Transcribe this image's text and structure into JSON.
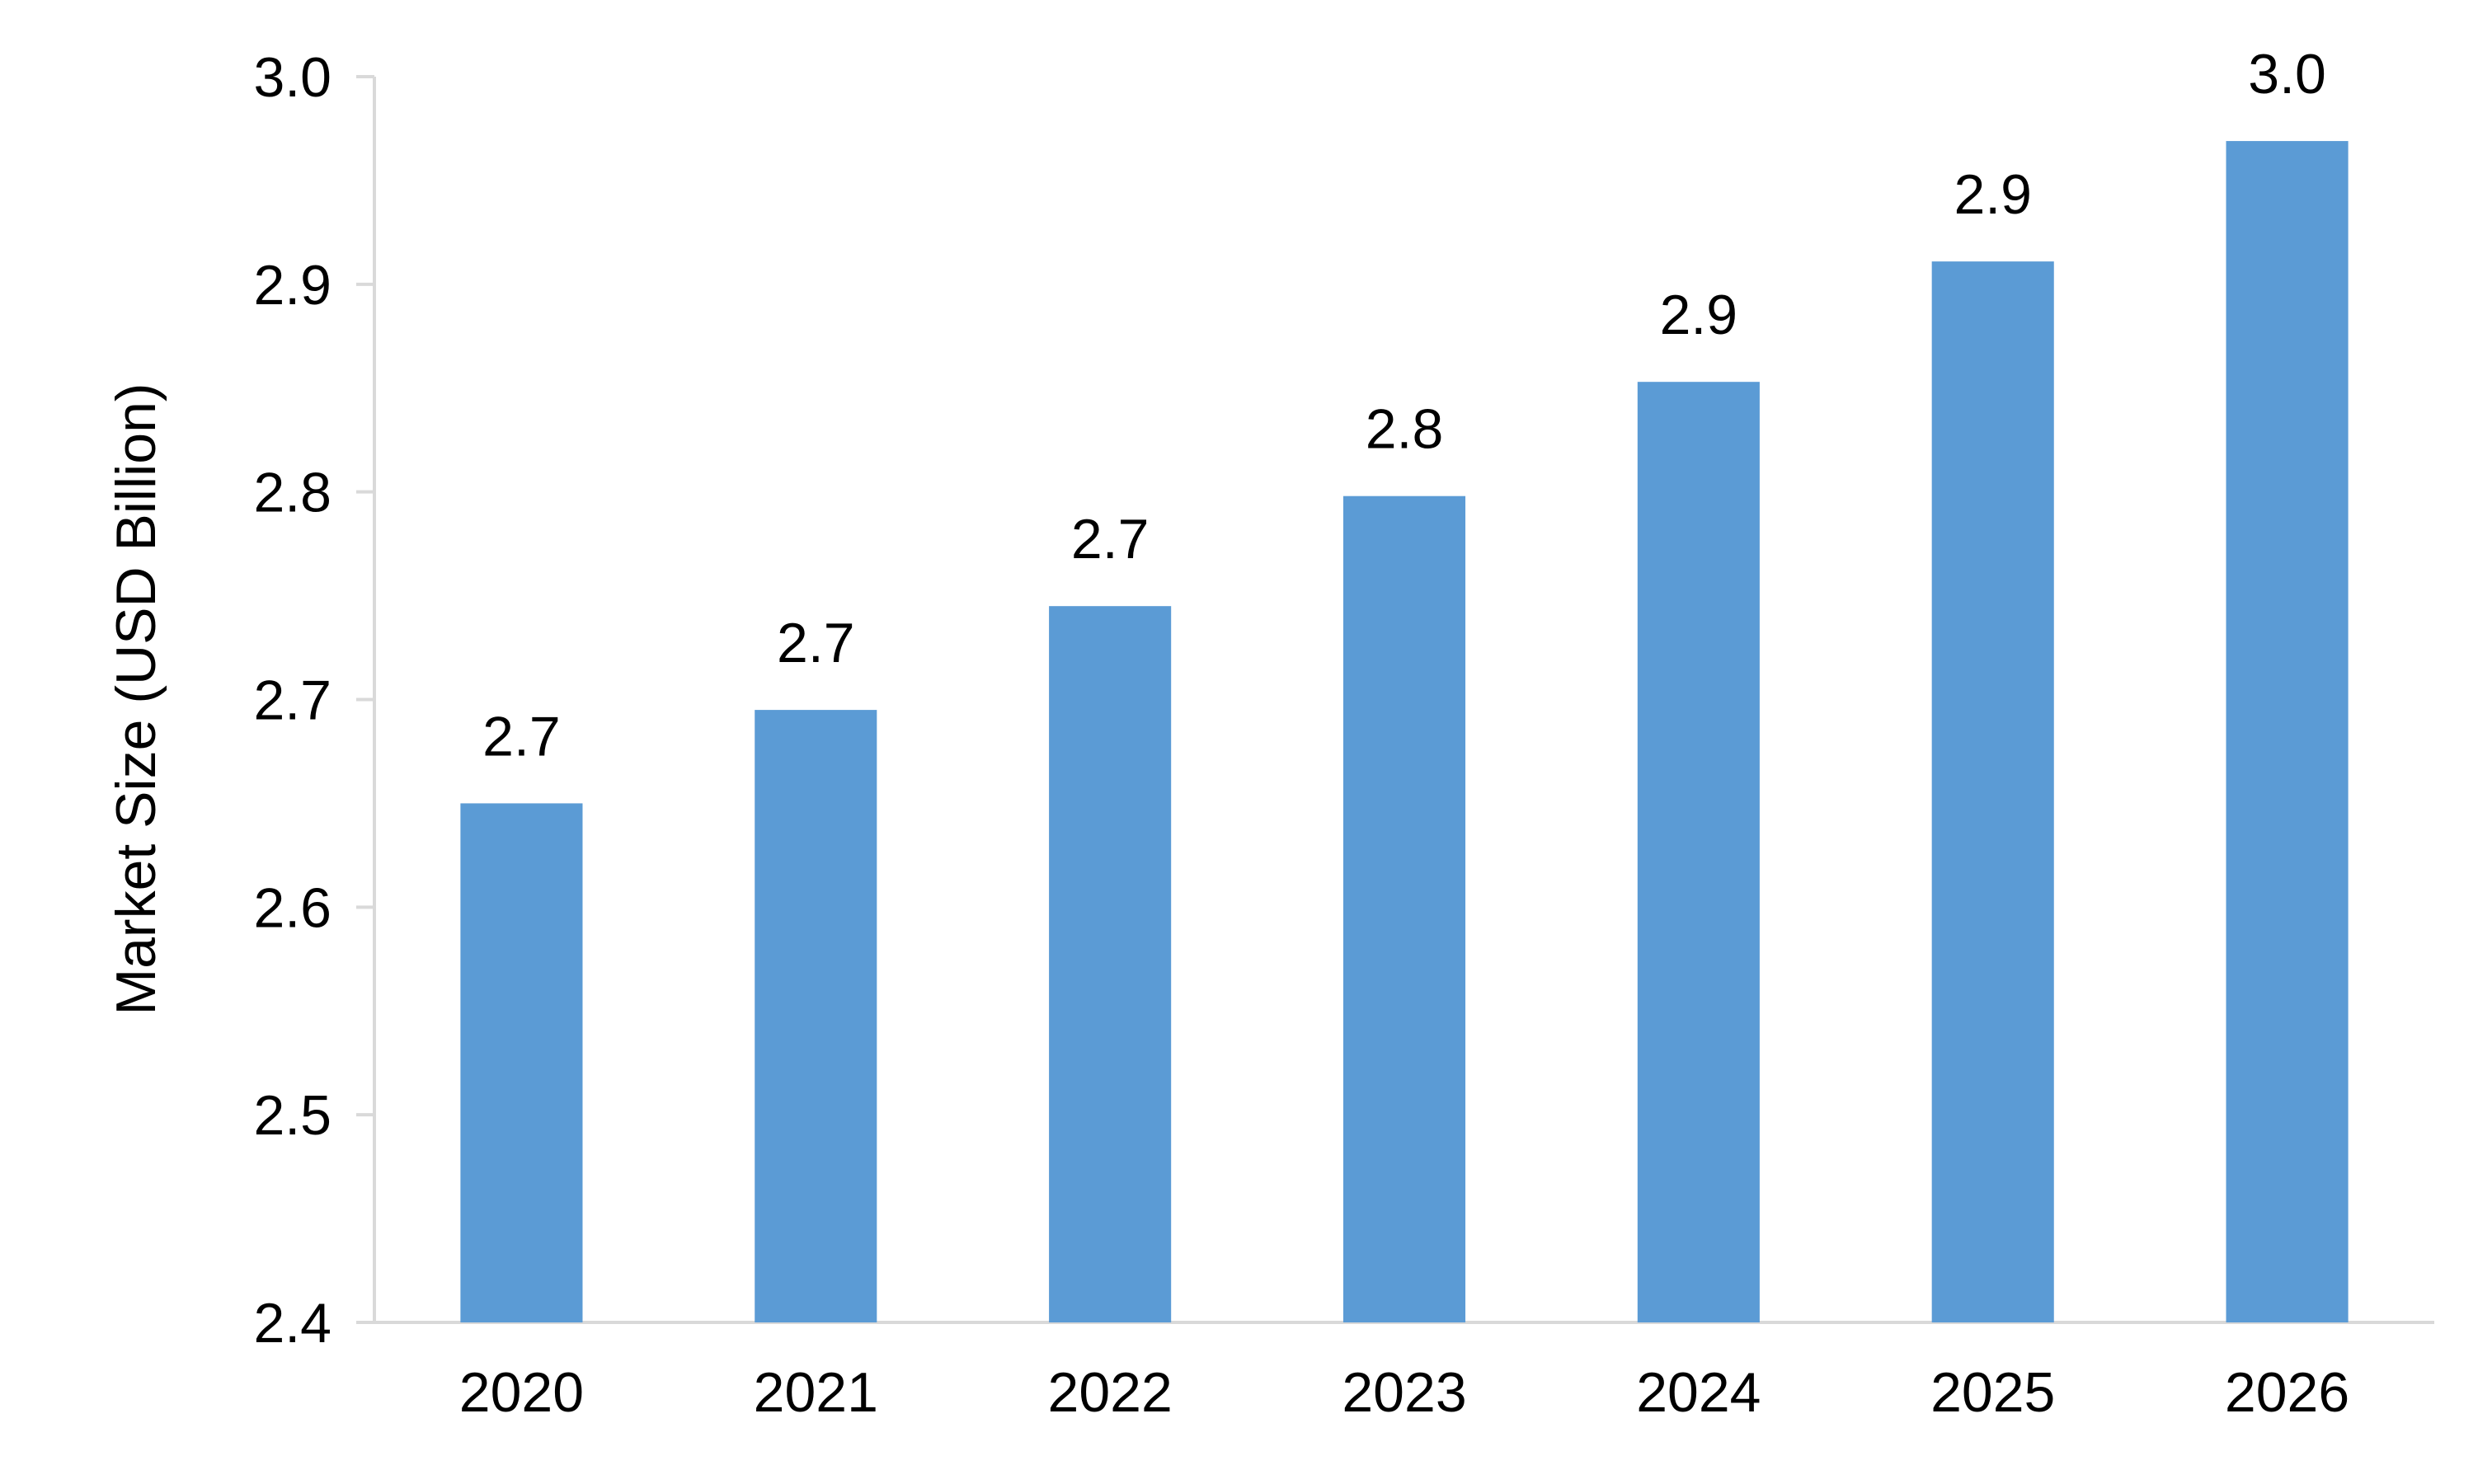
{
  "chart_data": {
    "type": "bar",
    "title": "",
    "xlabel": "",
    "ylabel": "Market Size (USD Billion)",
    "categories": [
      "2020",
      "2021",
      "2022",
      "2023",
      "2024",
      "2025",
      "2026"
    ],
    "values": [
      2.65,
      2.695,
      2.745,
      2.798,
      2.853,
      2.911,
      2.969
    ],
    "data_labels": [
      "2.7",
      "2.7",
      "2.7",
      "2.8",
      "2.9",
      "2.9",
      "3.0"
    ],
    "ylim": [
      2.4,
      3.0
    ],
    "yticks": [
      "2.4",
      "2.5",
      "2.6",
      "2.7",
      "2.8",
      "2.9",
      "3.0"
    ],
    "grid": false,
    "legend": "none",
    "bar_color": "#5b9bd5"
  }
}
